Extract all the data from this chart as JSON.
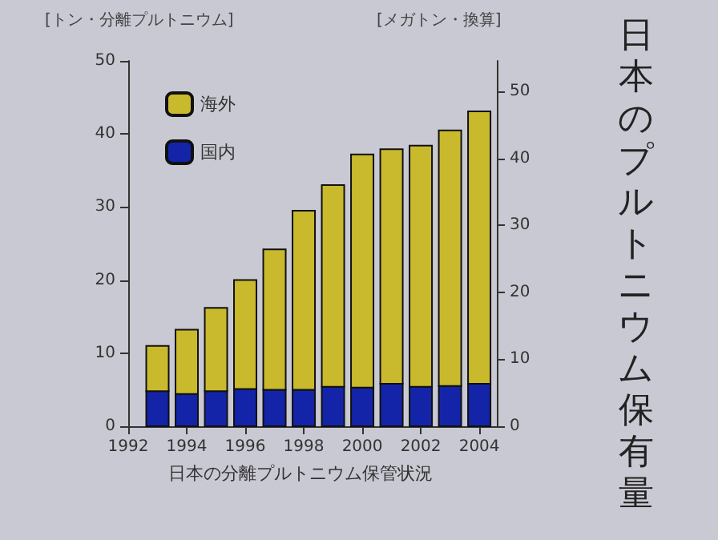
{
  "chart_data": {
    "type": "bar",
    "title": "日本のプルトニウム保有量",
    "ylabel": "[トン・分離プルトニウム]",
    "y2label": "[メガトン・換算]",
    "x": [
      1993,
      1994,
      1995,
      1996,
      1997,
      1998,
      1999,
      2000,
      2001,
      2002,
      2003,
      2004
    ],
    "stacked": true,
    "series": [
      {
        "name": "国内",
        "color": "#1424a8",
        "values": [
          4.8,
          4.4,
          4.8,
          5.1,
          5.0,
          5.0,
          5.4,
          5.3,
          5.8,
          5.4,
          5.5,
          5.8
        ]
      },
      {
        "name": "海外",
        "color": "#c9b92c",
        "values": [
          6.2,
          8.8,
          11.4,
          14.9,
          19.2,
          24.5,
          27.6,
          31.9,
          32.1,
          33.0,
          35.0,
          37.3
        ]
      }
    ],
    "xlim": [
      1992,
      2004.6
    ],
    "xticks": [
      1992,
      1994,
      1996,
      1998,
      2000,
      2002,
      2004
    ],
    "ylim": [
      0,
      50
    ],
    "yticks": [
      0,
      10,
      20,
      30,
      40,
      50
    ],
    "y2lim": [
      0,
      54.6
    ],
    "y2ticks": [
      0,
      10,
      20,
      30,
      40,
      50
    ],
    "legend": "top left",
    "grid": false,
    "annotations": [
      "日本の分離プルトニウム保管状況"
    ]
  }
}
